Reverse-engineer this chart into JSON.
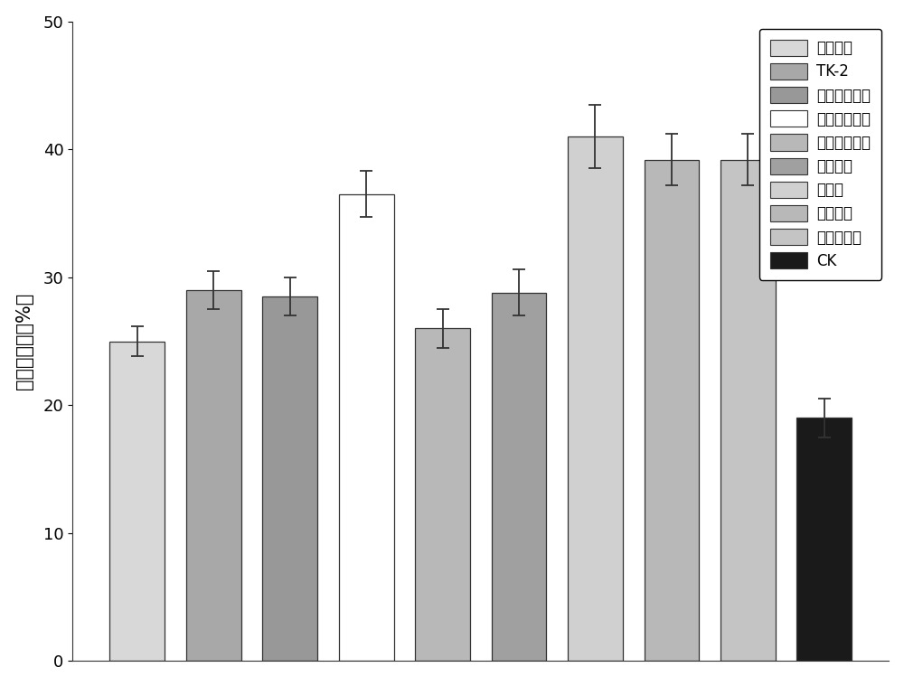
{
  "categories": [
    "假单胞菌",
    "TK-2",
    "枯草芽孢杆菌",
    "地衣芽孢杆菌",
    "巨大芽孢杆菌",
    "绿色木霉",
    "黑曲霉",
    "白腐真菌",
    "白囊耙齿菌",
    "CK"
  ],
  "values": [
    25.0,
    29.0,
    28.5,
    36.5,
    26.0,
    28.8,
    41.0,
    39.2,
    39.2,
    19.0
  ],
  "errors": [
    1.2,
    1.5,
    1.5,
    1.8,
    1.5,
    1.8,
    2.5,
    2.0,
    2.0,
    1.5
  ],
  "colors": [
    "#d8d8d8",
    "#a8a8a8",
    "#989898",
    "#ffffff",
    "#b8b8b8",
    "#a0a0a0",
    "#d0d0d0",
    "#b8b8b8",
    "#c4c4c4",
    "#1a1a1a"
  ],
  "ylabel": "秸秆降解率（%）",
  "ylim": [
    0,
    50
  ],
  "yticks": [
    0,
    10,
    20,
    30,
    40,
    50
  ],
  "bar_width": 0.72,
  "edge_color": "#333333",
  "error_color": "#333333",
  "legend_labels": [
    "假单胞菌",
    "TK-2",
    "枯草芽孢杆菌",
    "地衣芽孢杆菌",
    "巨大芽孢杆菌",
    "绿色木霉",
    "黑曲霉",
    "白腐真菌",
    "白囊耙齿菌",
    "CK"
  ],
  "legend_colors": [
    "#d8d8d8",
    "#a8a8a8",
    "#989898",
    "#ffffff",
    "#b8b8b8",
    "#a0a0a0",
    "#d0d0d0",
    "#b8b8b8",
    "#c4c4c4",
    "#1a1a1a"
  ],
  "fig_width": 10.0,
  "fig_height": 7.59,
  "background_color": "#ffffff",
  "ylabel_fontsize": 15,
  "tick_fontsize": 13,
  "legend_fontsize": 12
}
